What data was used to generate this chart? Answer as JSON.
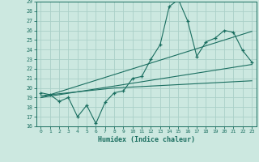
{
  "xlabel": "Humidex (Indice chaleur)",
  "bg_color": "#cce8e0",
  "line_color": "#1a6e60",
  "grid_color": "#aad0c8",
  "x_data": [
    0,
    1,
    2,
    3,
    4,
    5,
    6,
    7,
    8,
    9,
    10,
    11,
    12,
    13,
    14,
    15,
    16,
    17,
    18,
    19,
    20,
    21,
    22,
    23
  ],
  "y_main": [
    19.5,
    19.3,
    18.6,
    19.0,
    17.0,
    18.2,
    16.3,
    18.5,
    19.5,
    19.7,
    21.0,
    21.2,
    23.0,
    24.5,
    28.5,
    29.2,
    27.0,
    23.3,
    24.8,
    25.2,
    26.0,
    25.8,
    23.9,
    22.7
  ],
  "y_trend_steep": [
    19.0,
    19.3,
    19.6,
    19.9,
    20.2,
    20.5,
    20.8,
    21.1,
    21.4,
    21.7,
    22.0,
    22.3,
    22.6,
    22.9,
    23.2,
    23.5,
    23.8,
    24.1,
    24.4,
    24.7,
    25.0,
    25.3,
    25.6,
    25.9
  ],
  "y_trend_mid": [
    19.0,
    19.15,
    19.3,
    19.45,
    19.6,
    19.75,
    19.9,
    20.05,
    20.2,
    20.35,
    20.5,
    20.65,
    20.8,
    20.95,
    21.1,
    21.25,
    21.4,
    21.55,
    21.7,
    21.85,
    22.0,
    22.15,
    22.3,
    22.45
  ],
  "y_trend_flat": [
    19.2,
    19.3,
    19.4,
    19.5,
    19.6,
    19.7,
    19.8,
    19.9,
    20.0,
    20.05,
    20.1,
    20.15,
    20.2,
    20.25,
    20.3,
    20.35,
    20.4,
    20.45,
    20.5,
    20.55,
    20.6,
    20.65,
    20.7,
    20.75
  ],
  "ylim": [
    16,
    29
  ],
  "yticks": [
    16,
    17,
    18,
    19,
    20,
    21,
    22,
    23,
    24,
    25,
    26,
    27,
    28,
    29
  ],
  "xticks": [
    0,
    1,
    2,
    3,
    4,
    5,
    6,
    7,
    8,
    9,
    10,
    11,
    12,
    13,
    14,
    15,
    16,
    17,
    18,
    19,
    20,
    21,
    22,
    23
  ]
}
